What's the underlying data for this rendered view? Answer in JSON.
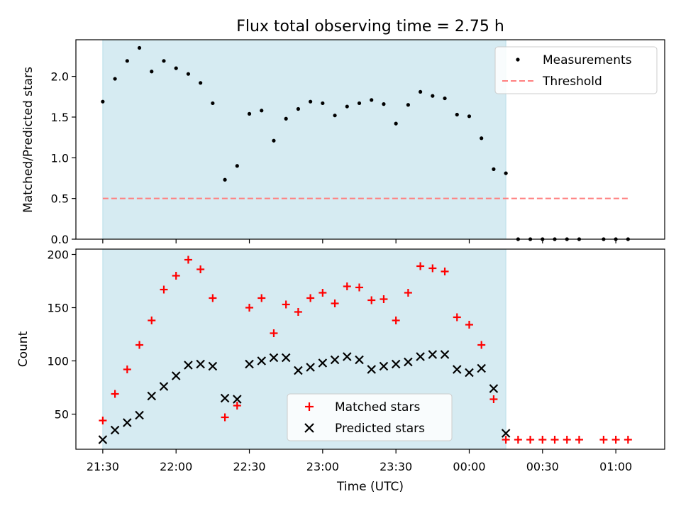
{
  "chart_data": {
    "title": "Flux total observing time = 2.75 h",
    "xlabel": "Time (UTC)",
    "x_tick_labels": [
      "21:30",
      "22:00",
      "22:30",
      "23:00",
      "23:30",
      "00:00",
      "00:30",
      "01:00"
    ],
    "x_tick_minutes": [
      0,
      30,
      60,
      90,
      120,
      150,
      180,
      210
    ],
    "x_time_minutes": [
      0,
      5,
      10,
      15,
      20,
      25,
      30,
      35,
      40,
      45,
      50,
      55,
      60,
      65,
      70,
      75,
      80,
      85,
      90,
      95,
      100,
      105,
      110,
      115,
      120,
      125,
      130,
      135,
      140,
      145,
      150,
      155,
      160,
      165,
      170,
      175,
      180,
      185,
      190,
      195,
      205,
      210,
      215
    ],
    "shaded_span_minutes": [
      0,
      165
    ],
    "xlim_minutes": [
      -11,
      230
    ],
    "top": {
      "type": "scatter",
      "ylabel": "Matched/Predicted stars",
      "ylim": [
        0,
        2.45
      ],
      "yticks": [
        "0.0",
        "0.5",
        "1.0",
        "1.5",
        "2.0"
      ],
      "ytick_values": [
        0,
        0.5,
        1.0,
        1.5,
        2.0
      ],
      "threshold": 0.5,
      "legend": [
        "Measurements",
        "Threshold"
      ],
      "measurements": [
        1.69,
        1.97,
        2.19,
        2.35,
        2.06,
        2.19,
        2.1,
        2.03,
        1.92,
        1.67,
        0.73,
        0.9,
        1.54,
        1.58,
        1.21,
        1.48,
        1.6,
        1.69,
        1.67,
        1.52,
        1.63,
        1.67,
        1.71,
        1.66,
        1.42,
        1.65,
        1.81,
        1.76,
        1.73,
        1.53,
        1.51,
        1.24,
        0.86,
        0.81,
        0.0,
        0.0,
        0.0,
        0.0,
        0.0,
        0.0,
        0.0,
        0.0,
        0.0
      ]
    },
    "bottom": {
      "type": "scatter",
      "ylabel": "Count",
      "ylim": [
        17,
        205
      ],
      "yticks": [
        "50",
        "100",
        "150",
        "200"
      ],
      "ytick_values": [
        50,
        100,
        150,
        200
      ],
      "legend": [
        "Matched stars",
        "Predicted stars"
      ],
      "series": [
        {
          "name": "Matched stars",
          "values": [
            44,
            69,
            92,
            115,
            138,
            167,
            180,
            195,
            186,
            159,
            47,
            58,
            150,
            159,
            126,
            153,
            146,
            159,
            164,
            154,
            170,
            169,
            157,
            158,
            138,
            164,
            189,
            187,
            184,
            141,
            134,
            115,
            64,
            26,
            26,
            26,
            26,
            26,
            26,
            26,
            26,
            26,
            26
          ]
        },
        {
          "name": "Predicted stars",
          "values": [
            26,
            35,
            42,
            49,
            67,
            76,
            86,
            96,
            97,
            95,
            65,
            64,
            97,
            100,
            103,
            103,
            91,
            94,
            98,
            101,
            104,
            101,
            92,
            95,
            97,
            99,
            104,
            106,
            106,
            92,
            89,
            93,
            74,
            32,
            null,
            null,
            null,
            null,
            null,
            null,
            null,
            null,
            null
          ]
        }
      ]
    },
    "colors": {
      "shade": "#add8e6",
      "threshold": "#ff7f7f",
      "matched": "#ff0000",
      "predicted": "#000000",
      "measurements": "#000000"
    }
  }
}
